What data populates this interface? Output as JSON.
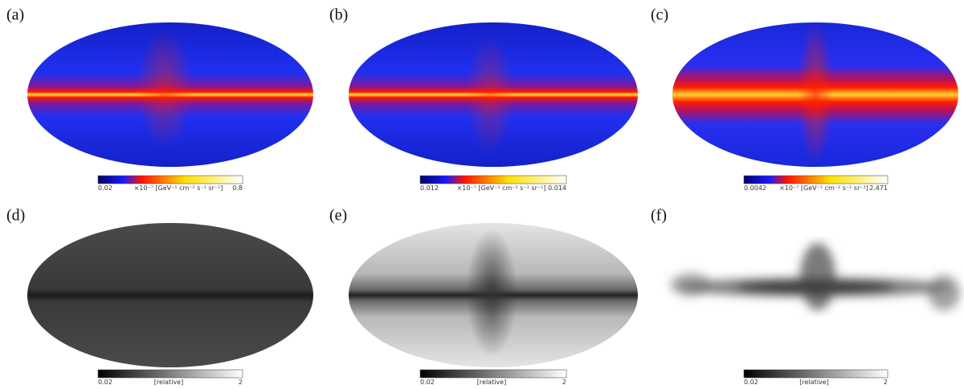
{
  "panels": [
    {
      "label": "(a)",
      "min": "0.02",
      "max": "0.8",
      "unit": "×10⁻⁷ [GeV⁻¹ cm⁻² s⁻¹ sr⁻¹]"
    },
    {
      "label": "(b)",
      "min": "0.012",
      "max": "0.014",
      "unit": "×10⁻⁷ [GeV⁻¹ cm⁻² s⁻¹ sr⁻¹]"
    },
    {
      "label": "(c)",
      "min": "0.0042",
      "max": "2.471",
      "unit": "×10⁻⁷ [GeV⁻¹ cm⁻² s⁻¹ sr⁻¹]"
    },
    {
      "label": "(d)",
      "min": "0.02",
      "max": "2",
      "unit": "[relative]"
    },
    {
      "label": "(e)",
      "min": "0.02",
      "max": "2",
      "unit": "[relative]"
    },
    {
      "label": "(f)",
      "min": "0.02",
      "max": "2",
      "unit": "[relative]"
    }
  ]
}
